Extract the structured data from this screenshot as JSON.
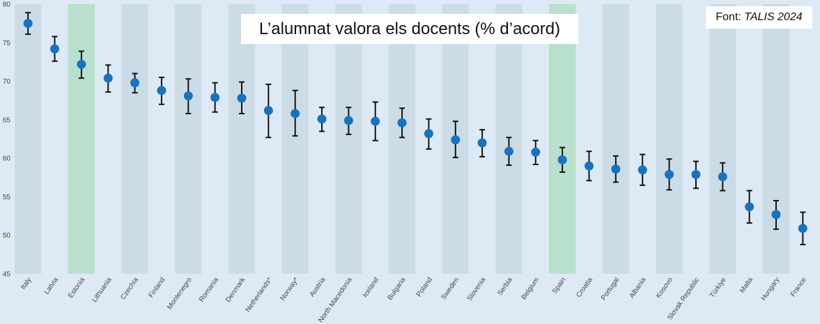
{
  "chart_data": {
    "type": "scatter",
    "title": "L’alumnat valora els docents (% d’acord)",
    "source_label": "Font:",
    "source_name": "TALIS 2024",
    "ylim": [
      45,
      80
    ],
    "yticks": [
      45,
      50,
      55,
      60,
      65,
      70,
      75,
      80
    ],
    "categories": [
      "Italy",
      "Latvia",
      "Estonia",
      "Lithuania",
      "Czechia",
      "Finland",
      "Montenegro",
      "Romania",
      "Denmark",
      "Netherlands*",
      "Norway*",
      "Austria",
      "North Macedonia",
      "Iceland",
      "Bulgaria",
      "Poland",
      "Sweden",
      "Slovenia",
      "Serbia",
      "Belgium",
      "Spain",
      "Croatia",
      "Portugal",
      "Albania",
      "Kosovo",
      "Slovak Republic",
      "Türkiye",
      "Malta",
      "Hungary",
      "France"
    ],
    "values": [
      77.5,
      74.2,
      72.2,
      70.4,
      69.8,
      68.8,
      68.1,
      67.9,
      67.8,
      66.2,
      65.8,
      65.1,
      64.9,
      64.8,
      64.6,
      63.2,
      62.4,
      62.0,
      60.9,
      60.8,
      59.8,
      59.0,
      58.6,
      58.5,
      57.9,
      57.9,
      57.6,
      53.7,
      52.7,
      50.9
    ],
    "upper": [
      78.9,
      75.8,
      73.9,
      72.1,
      71.0,
      70.5,
      70.3,
      69.8,
      69.9,
      69.6,
      68.8,
      66.6,
      66.6,
      67.3,
      66.5,
      65.1,
      64.8,
      63.7,
      62.7,
      62.3,
      61.4,
      60.9,
      60.3,
      60.5,
      59.9,
      59.6,
      59.4,
      55.8,
      54.5,
      53.0
    ],
    "lower": [
      76.1,
      72.6,
      70.4,
      68.6,
      68.5,
      67.0,
      65.8,
      66.0,
      65.8,
      62.7,
      62.9,
      63.5,
      63.1,
      62.3,
      62.7,
      61.2,
      60.1,
      60.2,
      59.1,
      59.2,
      58.2,
      57.1,
      56.9,
      56.5,
      55.9,
      56.1,
      55.8,
      51.6,
      50.8,
      48.8
    ],
    "highlight": [
      "Estonia",
      "Spain"
    ],
    "colors": {
      "background": "#ddeaf6",
      "band_dark": "#ccdce6",
      "band_light": "#ddeaf6",
      "band_highlight": "#b9e0cc",
      "marker": "#1a72bd",
      "error_bar": "#111111",
      "axis_text": "#444444"
    },
    "grid": false,
    "legend": "none"
  }
}
